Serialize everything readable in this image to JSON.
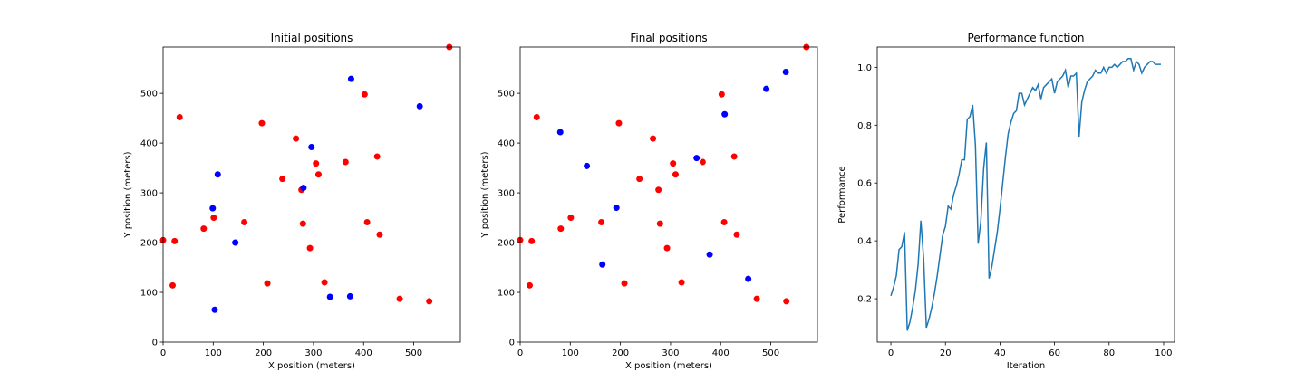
{
  "chart_data": [
    {
      "type": "scatter",
      "title": "Initial positions",
      "xlabel": "X position (meters)",
      "ylabel": "Y position (meters)",
      "xlim": [
        0,
        593
      ],
      "ylim": [
        0,
        593
      ],
      "xticks": [
        0,
        100,
        200,
        300,
        400,
        500
      ],
      "yticks": [
        0,
        100,
        200,
        300,
        400,
        500
      ],
      "grid": false,
      "series": [
        {
          "color": "#ff0000",
          "points": [
            [
              0,
              205
            ],
            [
              23,
              203
            ],
            [
              19,
              114
            ],
            [
              33,
              452
            ],
            [
              81,
              228
            ],
            [
              101,
              250
            ],
            [
              162,
              241
            ],
            [
              197,
              440
            ],
            [
              208,
              118
            ],
            [
              238,
              328
            ],
            [
              265,
              409
            ],
            [
              276,
              306
            ],
            [
              279,
              238
            ],
            [
              293,
              189
            ],
            [
              305,
              359
            ],
            [
              310,
              337
            ],
            [
              322,
              120
            ],
            [
              364,
              362
            ],
            [
              402,
              498
            ],
            [
              407,
              241
            ],
            [
              427,
              373
            ],
            [
              432,
              216
            ],
            [
              472,
              87
            ],
            [
              531,
              82
            ],
            [
              571,
              593
            ]
          ]
        },
        {
          "color": "#0000ff",
          "points": [
            [
              99,
              269
            ],
            [
              103,
              65
            ],
            [
              109,
              337
            ],
            [
              144,
              200
            ],
            [
              280,
              310
            ],
            [
              296,
              392
            ],
            [
              333,
              91
            ],
            [
              373,
              92
            ],
            [
              375,
              529
            ],
            [
              512,
              474
            ]
          ]
        }
      ]
    },
    {
      "type": "scatter",
      "title": "Final positions",
      "xlabel": "X position (meters)",
      "ylabel": "Y position (meters)",
      "xlim": [
        0,
        593
      ],
      "ylim": [
        0,
        593
      ],
      "xticks": [
        0,
        100,
        200,
        300,
        400,
        500
      ],
      "yticks": [
        0,
        100,
        200,
        300,
        400,
        500
      ],
      "grid": false,
      "series": [
        {
          "color": "#ff0000",
          "points": [
            [
              0,
              205
            ],
            [
              23,
              203
            ],
            [
              19,
              114
            ],
            [
              33,
              452
            ],
            [
              81,
              228
            ],
            [
              101,
              250
            ],
            [
              162,
              241
            ],
            [
              197,
              440
            ],
            [
              208,
              118
            ],
            [
              238,
              328
            ],
            [
              265,
              409
            ],
            [
              276,
              306
            ],
            [
              279,
              238
            ],
            [
              293,
              189
            ],
            [
              305,
              359
            ],
            [
              310,
              337
            ],
            [
              322,
              120
            ],
            [
              364,
              362
            ],
            [
              402,
              498
            ],
            [
              407,
              241
            ],
            [
              427,
              373
            ],
            [
              432,
              216
            ],
            [
              472,
              87
            ],
            [
              531,
              82
            ],
            [
              571,
              593
            ]
          ]
        },
        {
          "color": "#0000ff",
          "points": [
            [
              80,
              422
            ],
            [
              133,
              354
            ],
            [
              164,
              156
            ],
            [
              192,
              270
            ],
            [
              352,
              370
            ],
            [
              378,
              176
            ],
            [
              408,
              458
            ],
            [
              455,
              127
            ],
            [
              491,
              509
            ],
            [
              530,
              543
            ]
          ]
        }
      ]
    },
    {
      "type": "line",
      "title": "Performance function",
      "xlabel": "Iteration",
      "ylabel": "Performance",
      "xlim": [
        -5,
        104
      ],
      "ylim": [
        0.05,
        1.07
      ],
      "xticks": [
        0,
        20,
        40,
        60,
        80,
        100
      ],
      "yticks": [
        0.2,
        0.4,
        0.6,
        0.8,
        1.0
      ],
      "ytick_labels": [
        "0.2",
        "0.4",
        "0.6",
        "0.8",
        "1.0"
      ],
      "grid": false,
      "series": [
        {
          "color": "#1f77b4",
          "values": [
            0.21,
            0.24,
            0.28,
            0.37,
            0.38,
            0.43,
            0.09,
            0.12,
            0.17,
            0.23,
            0.32,
            0.47,
            0.34,
            0.1,
            0.13,
            0.17,
            0.22,
            0.28,
            0.35,
            0.42,
            0.45,
            0.52,
            0.51,
            0.56,
            0.59,
            0.63,
            0.68,
            0.68,
            0.82,
            0.83,
            0.87,
            0.73,
            0.39,
            0.47,
            0.65,
            0.74,
            0.27,
            0.31,
            0.37,
            0.43,
            0.51,
            0.6,
            0.69,
            0.77,
            0.81,
            0.84,
            0.85,
            0.91,
            0.91,
            0.87,
            0.89,
            0.91,
            0.93,
            0.92,
            0.94,
            0.89,
            0.93,
            0.94,
            0.95,
            0.96,
            0.91,
            0.95,
            0.96,
            0.97,
            0.99,
            0.93,
            0.97,
            0.97,
            0.98,
            0.76,
            0.88,
            0.92,
            0.95,
            0.96,
            0.97,
            0.99,
            0.98,
            0.98,
            1.0,
            0.98,
            1.0,
            1.0,
            1.01,
            1.0,
            1.01,
            1.02,
            1.02,
            1.03,
            1.03,
            0.99,
            1.02,
            1.01,
            0.98,
            1.0,
            1.01,
            1.02,
            1.02,
            1.01,
            1.01,
            1.01
          ]
        }
      ]
    }
  ]
}
